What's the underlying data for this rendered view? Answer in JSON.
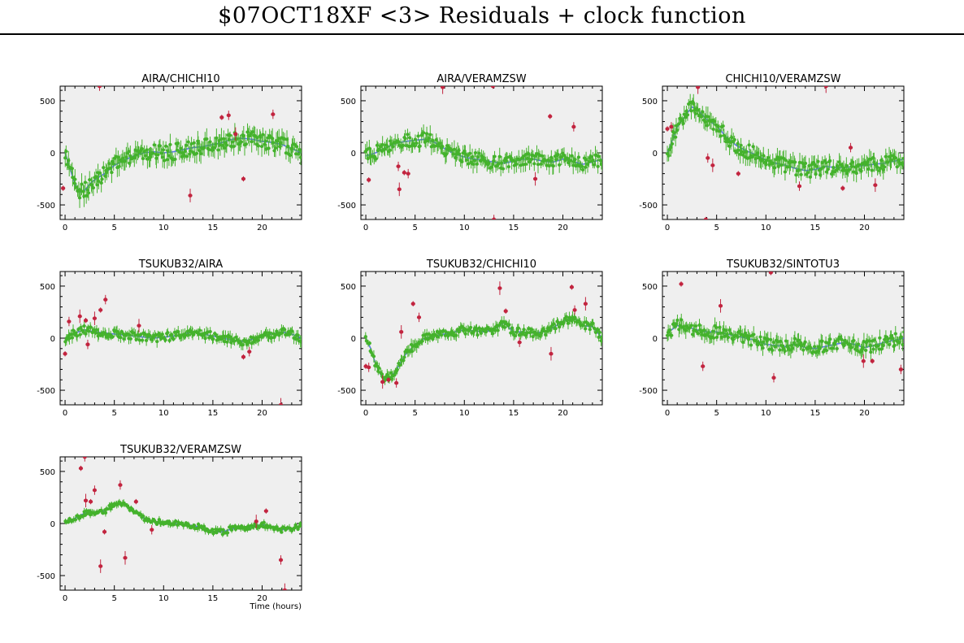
{
  "page": {
    "title": "$07OCT18XF <3> Residuals + clock function"
  },
  "colors": {
    "plot_background": "#efefef",
    "good_points": "#44b22c",
    "flagged_points": "#c2243f",
    "clock_function": "#5a78e0"
  },
  "chart_data": [
    {
      "type": "scatter",
      "title": "AIRA/CHICHI10",
      "xlabel": "",
      "ylabel": "",
      "xlim": [
        -0.5,
        24
      ],
      "ylim": [
        -640,
        640
      ],
      "xticks": [
        0,
        5,
        10,
        15,
        20
      ],
      "yticks": [
        -500,
        0,
        500
      ],
      "clock": [
        [
          0,
          0
        ],
        [
          0.5,
          -150
        ],
        [
          1,
          -300
        ],
        [
          1.5,
          -380
        ],
        [
          2,
          -360
        ],
        [
          2.5,
          -300
        ],
        [
          3,
          -260
        ],
        [
          4,
          -200
        ],
        [
          5,
          -120
        ],
        [
          6,
          -70
        ],
        [
          7,
          -30
        ],
        [
          8,
          0
        ],
        [
          9,
          10
        ],
        [
          10,
          0
        ],
        [
          11,
          10
        ],
        [
          12,
          30
        ],
        [
          13,
          50
        ],
        [
          14,
          60
        ],
        [
          15,
          80
        ],
        [
          16,
          100
        ],
        [
          17,
          130
        ],
        [
          18,
          140
        ],
        [
          19,
          130
        ],
        [
          20,
          110
        ],
        [
          21,
          100
        ],
        [
          22,
          80
        ],
        [
          23,
          40
        ],
        [
          24,
          0
        ]
      ],
      "good_amp": 75,
      "good_err": 70,
      "flagged": [
        {
          "x": -0.2,
          "y": -340
        },
        {
          "x": 3.5,
          "y": 640
        },
        {
          "x": 12.7,
          "y": -410
        },
        {
          "x": 15.9,
          "y": 340
        },
        {
          "x": 16.6,
          "y": 360
        },
        {
          "x": 17.3,
          "y": 180
        },
        {
          "x": 18.1,
          "y": -250
        },
        {
          "x": 21.1,
          "y": 370
        }
      ]
    },
    {
      "type": "scatter",
      "title": "AIRA/VERAMZSW",
      "xlabel": "",
      "ylabel": "",
      "xlim": [
        -0.5,
        24
      ],
      "ylim": [
        -640,
        640
      ],
      "xticks": [
        0,
        5,
        10,
        15,
        20
      ],
      "yticks": [
        -500,
        0,
        500
      ],
      "clock": [
        [
          0,
          -30
        ],
        [
          1,
          0
        ],
        [
          2,
          50
        ],
        [
          3,
          90
        ],
        [
          4,
          110
        ],
        [
          5,
          120
        ],
        [
          6,
          130
        ],
        [
          7,
          100
        ],
        [
          8,
          40
        ],
        [
          9,
          -10
        ],
        [
          10,
          -40
        ],
        [
          11,
          -60
        ],
        [
          12,
          -70
        ],
        [
          13,
          -90
        ],
        [
          14,
          -100
        ],
        [
          15,
          -80
        ],
        [
          16,
          -60
        ],
        [
          17,
          -60
        ],
        [
          18,
          -80
        ],
        [
          19,
          -90
        ],
        [
          20,
          -60
        ],
        [
          21,
          -80
        ],
        [
          22,
          -110
        ],
        [
          23,
          -90
        ],
        [
          24,
          -60
        ]
      ],
      "good_amp": 65,
      "good_err": 60,
      "flagged": [
        {
          "x": 0.3,
          "y": -260
        },
        {
          "x": 3.3,
          "y": -130
        },
        {
          "x": 3.4,
          "y": -350
        },
        {
          "x": 3.9,
          "y": -190
        },
        {
          "x": 4.3,
          "y": -200
        },
        {
          "x": 7.8,
          "y": 630
        },
        {
          "x": 12.9,
          "y": 640
        },
        {
          "x": 13,
          "y": -640
        },
        {
          "x": 17.2,
          "y": -250
        },
        {
          "x": 18.7,
          "y": 350
        },
        {
          "x": 21.1,
          "y": 250
        }
      ]
    },
    {
      "type": "scatter",
      "title": "CHICHI10/VERAMZSW",
      "xlabel": "",
      "ylabel": "",
      "xlim": [
        -0.5,
        24
      ],
      "ylim": [
        -640,
        640
      ],
      "xticks": [
        0,
        5,
        10,
        15,
        20
      ],
      "yticks": [
        -500,
        0,
        500
      ],
      "clock": [
        [
          0,
          0
        ],
        [
          0.5,
          120
        ],
        [
          1,
          250
        ],
        [
          2,
          380
        ],
        [
          2.5,
          440
        ],
        [
          3,
          420
        ],
        [
          4,
          320
        ],
        [
          5,
          260
        ],
        [
          6,
          150
        ],
        [
          7,
          70
        ],
        [
          8,
          20
        ],
        [
          9,
          -20
        ],
        [
          10,
          -70
        ],
        [
          11,
          -100
        ],
        [
          12,
          -120
        ],
        [
          13,
          -150
        ],
        [
          14,
          -170
        ],
        [
          15,
          -160
        ],
        [
          16,
          -130
        ],
        [
          17,
          -140
        ],
        [
          18,
          -140
        ],
        [
          19,
          -130
        ],
        [
          20,
          -120
        ],
        [
          21,
          -110
        ],
        [
          22,
          -100
        ],
        [
          23,
          -80
        ],
        [
          24,
          -60
        ]
      ],
      "good_amp": 70,
      "good_err": 65,
      "flagged": [
        {
          "x": 0,
          "y": 230
        },
        {
          "x": 0.4,
          "y": 250
        },
        {
          "x": 3.1,
          "y": 630
        },
        {
          "x": 3.9,
          "y": -640
        },
        {
          "x": 4.1,
          "y": -50
        },
        {
          "x": 4.6,
          "y": -120
        },
        {
          "x": 7.2,
          "y": -200
        },
        {
          "x": 13.4,
          "y": -320
        },
        {
          "x": 16.1,
          "y": 640
        },
        {
          "x": 17.8,
          "y": -340
        },
        {
          "x": 18.6,
          "y": 50
        },
        {
          "x": 21.1,
          "y": -310
        }
      ]
    },
    {
      "type": "scatter",
      "title": "TSUKUB32/AIRA",
      "xlabel": "",
      "ylabel": "",
      "xlim": [
        -0.5,
        24
      ],
      "ylim": [
        -640,
        640
      ],
      "xticks": [
        0,
        5,
        10,
        15,
        20
      ],
      "yticks": [
        -500,
        0,
        500
      ],
      "clock": [
        [
          0,
          0
        ],
        [
          1,
          50
        ],
        [
          2,
          80
        ],
        [
          3,
          60
        ],
        [
          4,
          50
        ],
        [
          5,
          40
        ],
        [
          6,
          30
        ],
        [
          7,
          20
        ],
        [
          8,
          10
        ],
        [
          9,
          0
        ],
        [
          10,
          10
        ],
        [
          11,
          20
        ],
        [
          12,
          40
        ],
        [
          13,
          60
        ],
        [
          14,
          40
        ],
        [
          15,
          20
        ],
        [
          16,
          0
        ],
        [
          17,
          -20
        ],
        [
          18,
          -30
        ],
        [
          19,
          -10
        ],
        [
          20,
          20
        ],
        [
          21,
          40
        ],
        [
          22,
          60
        ],
        [
          23,
          40
        ],
        [
          24,
          0
        ]
      ],
      "good_amp": 40,
      "good_err": 40,
      "flagged": [
        {
          "x": 0,
          "y": -150
        },
        {
          "x": 0.4,
          "y": 160
        },
        {
          "x": 1.5,
          "y": 210
        },
        {
          "x": 2.1,
          "y": 170
        },
        {
          "x": 2.3,
          "y": -60
        },
        {
          "x": 3,
          "y": 190
        },
        {
          "x": 3.6,
          "y": 270
        },
        {
          "x": 4.1,
          "y": 370
        },
        {
          "x": 7.5,
          "y": 120
        },
        {
          "x": 18.1,
          "y": -180
        },
        {
          "x": 18.7,
          "y": -130
        },
        {
          "x": 21.9,
          "y": -640
        }
      ]
    },
    {
      "type": "scatter",
      "title": "TSUKUB32/CHICHI10",
      "xlabel": "",
      "ylabel": "",
      "xlim": [
        -0.5,
        24
      ],
      "ylim": [
        -640,
        640
      ],
      "xticks": [
        0,
        5,
        10,
        15,
        20
      ],
      "yticks": [
        -500,
        0,
        500
      ],
      "clock": [
        [
          0,
          0
        ],
        [
          0.5,
          -100
        ],
        [
          1,
          -250
        ],
        [
          1.5,
          -350
        ],
        [
          2,
          -390
        ],
        [
          2.5,
          -380
        ],
        [
          3,
          -320
        ],
        [
          4,
          -160
        ],
        [
          5,
          -60
        ],
        [
          6,
          0
        ],
        [
          7,
          20
        ],
        [
          8,
          40
        ],
        [
          9,
          60
        ],
        [
          10,
          80
        ],
        [
          11,
          70
        ],
        [
          12,
          60
        ],
        [
          13,
          80
        ],
        [
          14,
          150
        ],
        [
          15,
          60
        ],
        [
          16,
          60
        ],
        [
          17,
          50
        ],
        [
          18,
          60
        ],
        [
          19,
          100
        ],
        [
          20,
          160
        ],
        [
          21,
          200
        ],
        [
          22,
          120
        ],
        [
          23,
          110
        ],
        [
          24,
          0
        ]
      ],
      "good_amp": 40,
      "good_err": 40,
      "flagged": [
        {
          "x": 0,
          "y": -270
        },
        {
          "x": 0.3,
          "y": -280
        },
        {
          "x": 1.7,
          "y": -420
        },
        {
          "x": 2.3,
          "y": -400
        },
        {
          "x": 3.1,
          "y": -430
        },
        {
          "x": 3.6,
          "y": 60
        },
        {
          "x": 4.8,
          "y": 330
        },
        {
          "x": 5.4,
          "y": 200
        },
        {
          "x": 13.6,
          "y": 480
        },
        {
          "x": 14.2,
          "y": 260
        },
        {
          "x": 15.6,
          "y": -40
        },
        {
          "x": 18.8,
          "y": -150
        },
        {
          "x": 20.9,
          "y": 490
        },
        {
          "x": 21.2,
          "y": 270
        },
        {
          "x": 22.3,
          "y": 330
        }
      ]
    },
    {
      "type": "scatter",
      "title": "TSUKUB32/SINTOTU3",
      "xlabel": "",
      "ylabel": "",
      "xlim": [
        -0.5,
        24
      ],
      "ylim": [
        -640,
        640
      ],
      "xticks": [
        0,
        5,
        10,
        15,
        20
      ],
      "yticks": [
        -500,
        0,
        500
      ],
      "clock": [
        [
          0,
          50
        ],
        [
          1,
          120
        ],
        [
          2,
          110
        ],
        [
          3,
          80
        ],
        [
          4,
          60
        ],
        [
          5,
          60
        ],
        [
          6,
          40
        ],
        [
          7,
          20
        ],
        [
          8,
          0
        ],
        [
          9,
          -20
        ],
        [
          10,
          -60
        ],
        [
          11,
          -70
        ],
        [
          12,
          -80
        ],
        [
          13,
          -60
        ],
        [
          14,
          -90
        ],
        [
          15,
          -100
        ],
        [
          16,
          -80
        ],
        [
          17,
          -60
        ],
        [
          18,
          -40
        ],
        [
          19,
          -60
        ],
        [
          20,
          -90
        ],
        [
          21,
          -70
        ],
        [
          22,
          -40
        ],
        [
          23,
          -20
        ],
        [
          24,
          0
        ]
      ],
      "good_amp": 60,
      "good_err": 55,
      "flagged": [
        {
          "x": 1.4,
          "y": 520
        },
        {
          "x": 3.6,
          "y": -270
        },
        {
          "x": 5.4,
          "y": 310
        },
        {
          "x": 10.5,
          "y": 630
        },
        {
          "x": 10.8,
          "y": -380
        },
        {
          "x": 19.9,
          "y": -220
        },
        {
          "x": 20.8,
          "y": -220
        },
        {
          "x": 23.7,
          "y": -300
        }
      ]
    },
    {
      "type": "scatter",
      "title": "TSUKUB32/VERAMZSW",
      "xlabel": "Time (hours)",
      "ylabel": "",
      "xlim": [
        -0.5,
        24
      ],
      "ylim": [
        -640,
        640
      ],
      "xticks": [
        0,
        5,
        10,
        15,
        20
      ],
      "yticks": [
        -500,
        0,
        500
      ],
      "clock": [
        [
          0,
          0
        ],
        [
          1,
          50
        ],
        [
          2,
          100
        ],
        [
          3,
          110
        ],
        [
          4,
          120
        ],
        [
          5,
          180
        ],
        [
          6,
          190
        ],
        [
          7,
          120
        ],
        [
          8,
          50
        ],
        [
          9,
          20
        ],
        [
          10,
          10
        ],
        [
          11,
          0
        ],
        [
          12,
          -10
        ],
        [
          13,
          -20
        ],
        [
          14,
          -40
        ],
        [
          15,
          -80
        ],
        [
          16,
          -80
        ],
        [
          17,
          -50
        ],
        [
          18,
          -40
        ],
        [
          19,
          -30
        ],
        [
          20,
          -10
        ],
        [
          21,
          -30
        ],
        [
          22,
          -60
        ],
        [
          23,
          -50
        ],
        [
          24,
          -20
        ]
      ],
      "good_amp": 25,
      "good_err": 25,
      "flagged": [
        {
          "x": 1.6,
          "y": 530
        },
        {
          "x": 2,
          "y": 640
        },
        {
          "x": 2.1,
          "y": 220
        },
        {
          "x": 2.6,
          "y": 210
        },
        {
          "x": 3,
          "y": 320
        },
        {
          "x": 3.6,
          "y": -410
        },
        {
          "x": 4,
          "y": -80
        },
        {
          "x": 5.6,
          "y": 370
        },
        {
          "x": 6.1,
          "y": -330
        },
        {
          "x": 7.2,
          "y": 210
        },
        {
          "x": 8.8,
          "y": -60
        },
        {
          "x": 19.4,
          "y": 20
        },
        {
          "x": 20.4,
          "y": 120
        },
        {
          "x": 21.9,
          "y": -350
        },
        {
          "x": 22.3,
          "y": -640
        }
      ]
    }
  ]
}
